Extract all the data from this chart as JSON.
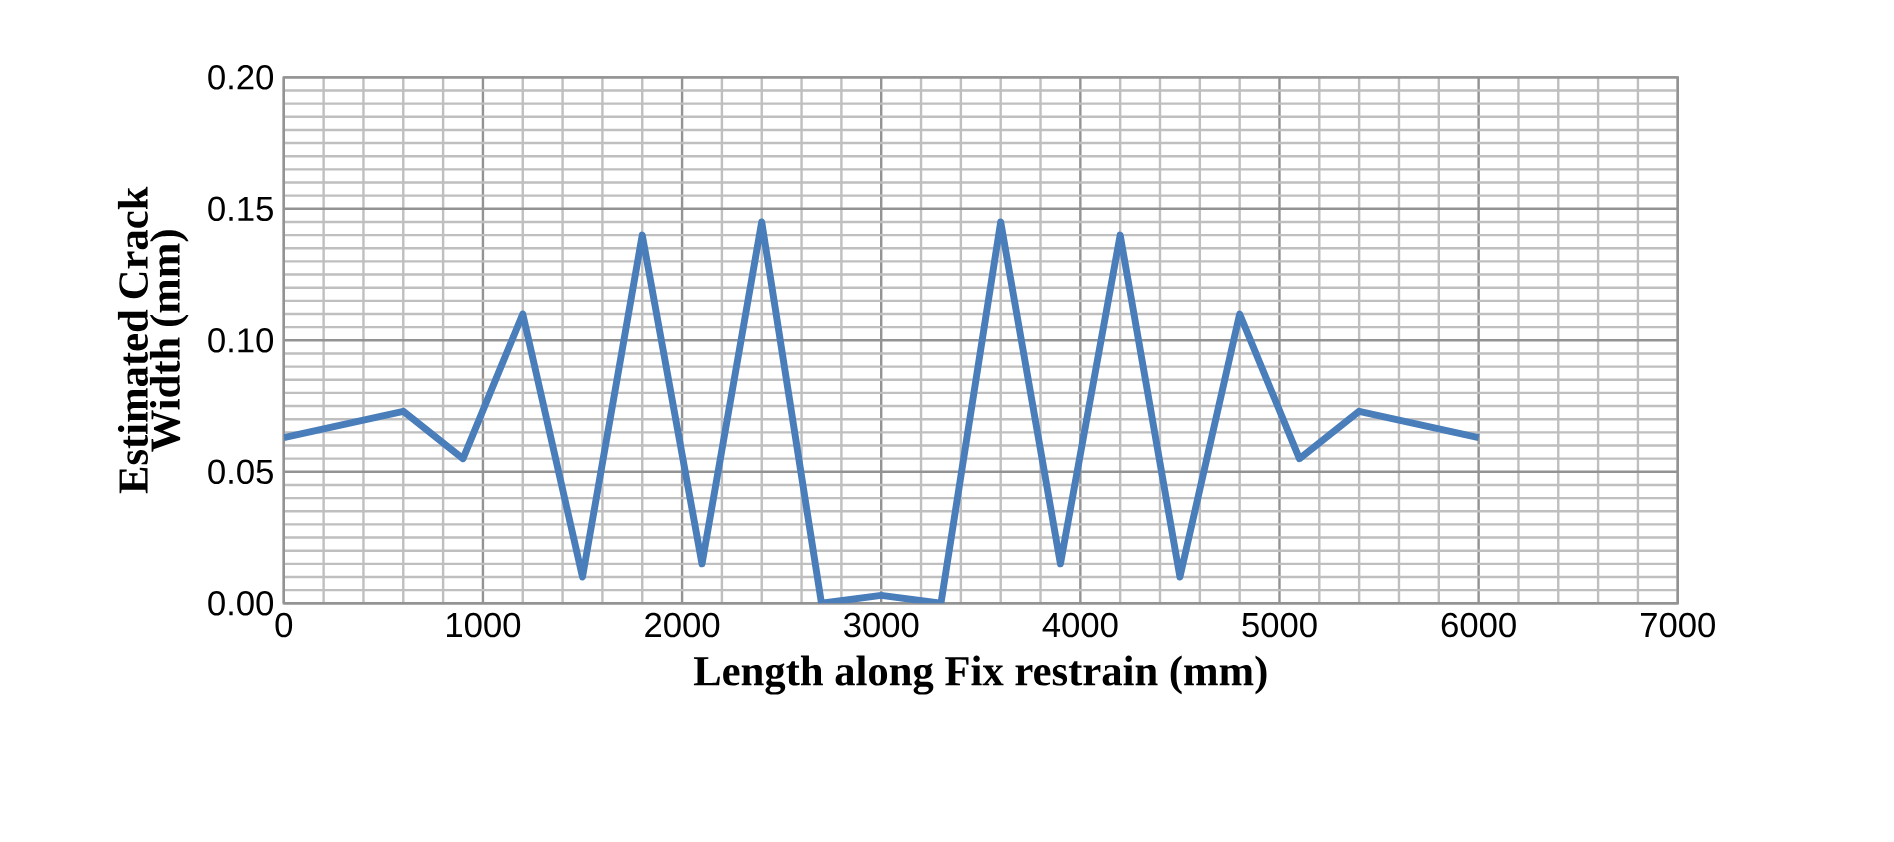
{
  "chart_data": {
    "type": "line",
    "xlabel": "Length along Fix restrain (mm)",
    "ylabel": "Estimated Crack Width (mm)",
    "x": [
      0,
      600,
      900,
      1200,
      1500,
      1800,
      2100,
      2400,
      2700,
      3000,
      3300,
      3600,
      3900,
      4200,
      4500,
      4800,
      5100,
      5400,
      6000
    ],
    "series": [
      {
        "color": "#4a7ebb",
        "values": [
          0.063,
          0.073,
          0.055,
          0.11,
          0.01,
          0.14,
          0.015,
          0.145,
          0.0,
          0.003,
          0.0,
          0.145,
          0.015,
          0.14,
          0.01,
          0.11,
          0.055,
          0.073,
          0.063
        ]
      }
    ],
    "xlim": [
      0,
      7000
    ],
    "xticks": [
      0,
      1000,
      2000,
      3000,
      4000,
      5000,
      6000,
      7000
    ],
    "ylim": [
      0,
      0.2
    ],
    "yticks": [
      {
        "value": 0,
        "label": "0.00"
      },
      {
        "value": 0.05,
        "label": "0.05"
      },
      {
        "value": 0.1,
        "label": "0.10"
      },
      {
        "value": 0.15,
        "label": "0.15"
      },
      {
        "value": 0.2,
        "label": "0.20"
      }
    ],
    "grid": true,
    "marker": "none",
    "line_style": "solid"
  }
}
